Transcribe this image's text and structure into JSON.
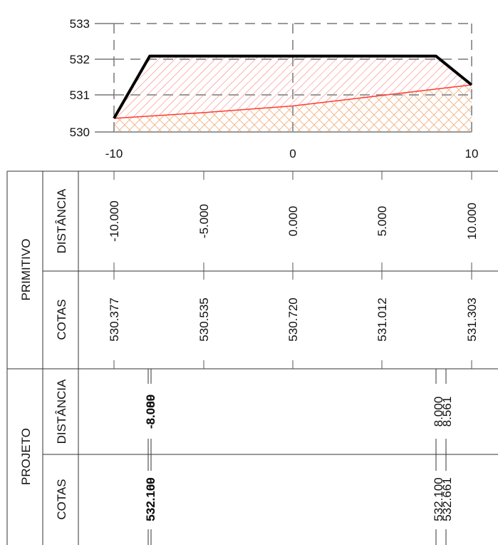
{
  "profile": {
    "y_ticks": [
      "533",
      "532",
      "531",
      "530"
    ],
    "x_ticks": [
      "-10",
      "0",
      "10"
    ],
    "ground_line": [
      [
        -10,
        530.377
      ],
      [
        -5,
        530.535
      ],
      [
        0,
        530.72
      ],
      [
        5,
        531.012
      ],
      [
        10,
        531.303
      ]
    ],
    "design_line": [
      [
        -10,
        530.377
      ],
      [
        -8,
        532.1
      ],
      [
        8,
        532.1
      ],
      [
        10,
        531.303
      ]
    ],
    "colors": {
      "ground": "#ff3b30",
      "design": "#000000",
      "hatch_cut": "#ff6a6a",
      "hatch_soil": "#f0b080",
      "grid": "#999999"
    }
  },
  "sections": [
    {
      "label": "PRIMITIVO",
      "rows": [
        {
          "label": "DISTÂNCIA",
          "values": [
            "-10.000",
            "-5.000",
            "0.000",
            "5.000",
            "10.000"
          ]
        },
        {
          "label": "COTAS",
          "values": [
            "530.377",
            "530.535",
            "530.720",
            "531.012",
            "531.303"
          ]
        }
      ]
    },
    {
      "label": "PROJETO",
      "rows": [
        {
          "label": "DISTÂNCIA",
          "left_values": [
            "-8.000",
            "-8.089"
          ],
          "right_values": [
            "8.000",
            "8.561"
          ]
        },
        {
          "label": "COTAS",
          "left_values": [
            "532.100",
            "532.169"
          ],
          "right_values": [
            "532.100",
            "532.661"
          ]
        }
      ]
    }
  ]
}
